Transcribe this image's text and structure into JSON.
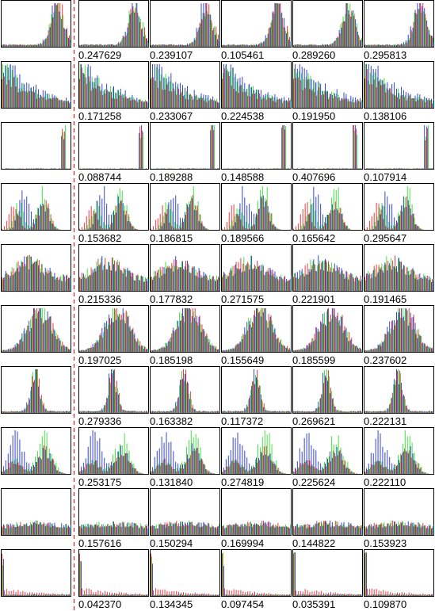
{
  "chart_data": {
    "type": "grid of RGB histograms",
    "description_rows": 10,
    "columns_per_row": 6,
    "colors": {
      "red": "#e8262c",
      "green": "#33dd33",
      "blue": "#2233cc",
      "frame": "#000000",
      "divider": "#cc2222"
    },
    "rows": [
      {
        "profile": "peak-right",
        "scores": [
          "0.247629",
          "0.239107",
          "0.105461",
          "0.289260",
          "0.295813"
        ]
      },
      {
        "profile": "decay-left",
        "scores": [
          "0.171258",
          "0.233067",
          "0.224538",
          "0.191950",
          "0.138106"
        ]
      },
      {
        "profile": "spike-right",
        "scores": [
          "0.088744",
          "0.189288",
          "0.148588",
          "0.407696",
          "0.107914"
        ]
      },
      {
        "profile": "bimodal",
        "scores": [
          "0.153682",
          "0.186815",
          "0.189566",
          "0.165642",
          "0.295647"
        ]
      },
      {
        "profile": "spread-noisy",
        "scores": [
          "0.215336",
          "0.177832",
          "0.271575",
          "0.221901",
          "0.191465"
        ]
      },
      {
        "profile": "bell",
        "scores": [
          "0.197025",
          "0.185198",
          "0.155649",
          "0.185599",
          "0.237602"
        ]
      },
      {
        "profile": "narrow-peak",
        "scores": [
          "0.279336",
          "0.163382",
          "0.117372",
          "0.269621",
          "0.222131"
        ]
      },
      {
        "profile": "bimodal-wide",
        "scores": [
          "0.253175",
          "0.131840",
          "0.274819",
          "0.225624",
          "0.222110"
        ]
      },
      {
        "profile": "flat-low",
        "scores": [
          "0.157616",
          "0.150294",
          "0.169994",
          "0.144822",
          "0.153923"
        ]
      },
      {
        "profile": "spike-left",
        "scores": [
          "0.042370",
          "0.134345",
          "0.097454",
          "0.035391",
          "0.109870"
        ]
      }
    ]
  }
}
